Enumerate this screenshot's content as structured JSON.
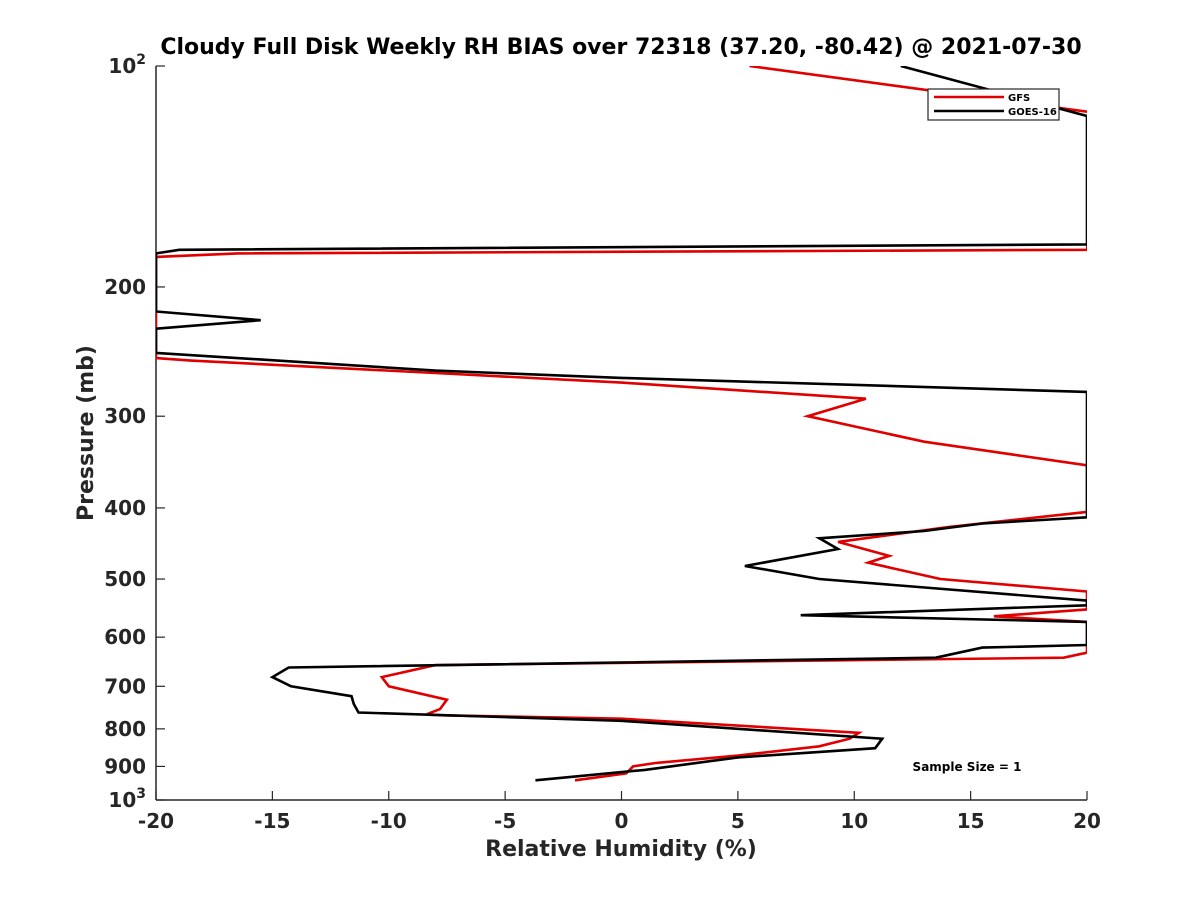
{
  "chart_data": {
    "type": "line",
    "title": "Cloudy Full Disk Weekly RH BIAS over 72318 (37.20, -80.42) @ 2021-07-30",
    "xlabel": "Relative Humidity (%)",
    "ylabel": "Pressure (mb)",
    "xlim": [
      -20,
      20
    ],
    "ylim": [
      100,
      1000
    ],
    "yscale": "log",
    "y_reversed": true,
    "grid": false,
    "x_ticks": [
      -20,
      -15,
      -10,
      -5,
      0,
      5,
      10,
      15,
      20
    ],
    "x_tick_labels": [
      "-20",
      "-15",
      "-10",
      "-5",
      "0",
      "5",
      "10",
      "15",
      "20"
    ],
    "y_ticks": [
      100,
      200,
      300,
      400,
      500,
      600,
      700,
      800,
      900,
      1000
    ],
    "y_tick_labels": [
      {
        "base": "10",
        "exp": "2"
      },
      {
        "base": "200",
        "exp": ""
      },
      {
        "base": "300",
        "exp": ""
      },
      {
        "base": "400",
        "exp": ""
      },
      {
        "base": "500",
        "exp": ""
      },
      {
        "base": "600",
        "exp": ""
      },
      {
        "base": "700",
        "exp": ""
      },
      {
        "base": "800",
        "exp": ""
      },
      {
        "base": "900",
        "exp": ""
      },
      {
        "base": "10",
        "exp": "3"
      }
    ],
    "legend_position": "top-right",
    "annotation": "Sample Size = 1",
    "series": [
      {
        "name": "GFS",
        "color": "#e00000",
        "points": [
          [
            5.5,
            100
          ],
          [
            20.5,
            116
          ],
          [
            20,
            178
          ],
          [
            -16.5,
            180
          ],
          [
            -20,
            182
          ],
          [
            -20,
            250
          ],
          [
            -18.5,
            252
          ],
          [
            -8,
            262
          ],
          [
            0,
            270
          ],
          [
            10.5,
            284
          ],
          [
            8,
            300
          ],
          [
            13,
            325
          ],
          [
            16.7,
            338
          ],
          [
            20,
            350
          ],
          [
            20,
            405
          ],
          [
            14,
            425
          ],
          [
            9.3,
            445
          ],
          [
            11.5,
            465
          ],
          [
            10.6,
            475
          ],
          [
            13.7,
            500
          ],
          [
            20,
            520
          ],
          [
            20,
            550
          ],
          [
            16,
            562
          ],
          [
            20,
            572
          ],
          [
            20,
            630
          ],
          [
            19,
            640
          ],
          [
            -8,
            655
          ],
          [
            -10.3,
            680
          ],
          [
            -10,
            700
          ],
          [
            -7.5,
            730
          ],
          [
            -7.8,
            752
          ],
          [
            -8.4,
            765
          ],
          [
            -7.5,
            767
          ],
          [
            0,
            775
          ],
          [
            10.2,
            810
          ],
          [
            9.8,
            825
          ],
          [
            8.5,
            845
          ],
          [
            5,
            870
          ],
          [
            1.5,
            890
          ],
          [
            0.5,
            900
          ],
          [
            0.2,
            920
          ],
          [
            -2,
            940
          ]
        ]
      },
      {
        "name": "GOES-16",
        "color": "#000000",
        "points": [
          [
            12,
            100
          ],
          [
            20,
            117
          ],
          [
            20,
            175
          ],
          [
            -19,
            178
          ],
          [
            -20,
            180
          ],
          [
            -20,
            216
          ],
          [
            -15.5,
            222
          ],
          [
            -20,
            228
          ],
          [
            -20,
            246
          ],
          [
            -8,
            260
          ],
          [
            0,
            266
          ],
          [
            20,
            278
          ],
          [
            20,
            412
          ],
          [
            15.5,
            420
          ],
          [
            13,
            430
          ],
          [
            8.5,
            440
          ],
          [
            9.3,
            455
          ],
          [
            5.3,
            480
          ],
          [
            8.5,
            500
          ],
          [
            20,
            535
          ],
          [
            20,
            543
          ],
          [
            7.7,
            560
          ],
          [
            20,
            572
          ],
          [
            20,
            615
          ],
          [
            15.5,
            620
          ],
          [
            13.5,
            640
          ],
          [
            -14.3,
            660
          ],
          [
            -15,
            680
          ],
          [
            -14.2,
            700
          ],
          [
            -11.6,
            722
          ],
          [
            -11.5,
            740
          ],
          [
            -11.3,
            760
          ],
          [
            0,
            780
          ],
          [
            11.2,
            825
          ],
          [
            10.9,
            850
          ],
          [
            5,
            875
          ],
          [
            1,
            910
          ],
          [
            -3.7,
            940
          ]
        ]
      }
    ]
  }
}
